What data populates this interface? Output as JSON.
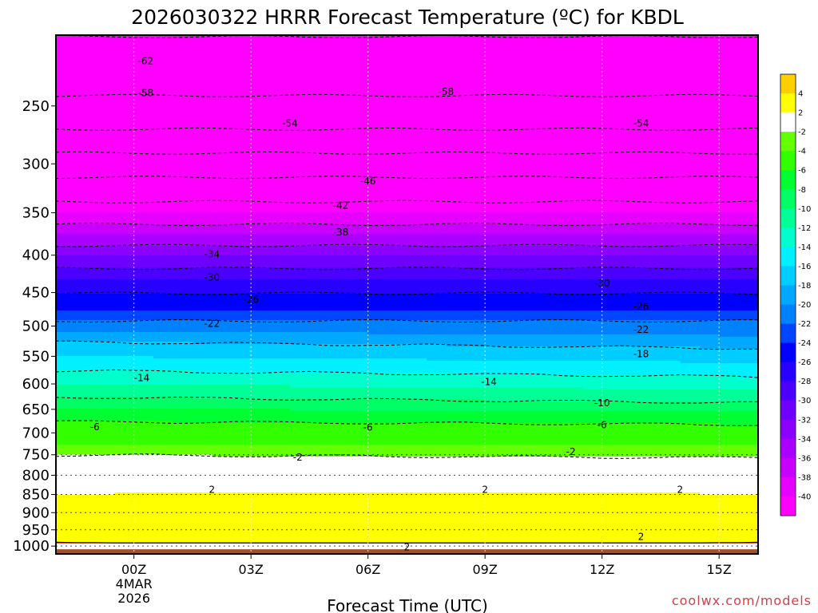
{
  "chart_data": {
    "type": "heatmap",
    "title": "2026030322 HRRR Forecast Temperature (ºC) for KBDL",
    "xlabel": "Forecast Time (UTC)",
    "ylabel": "",
    "x_tick_labels": [
      "00Z",
      "03Z",
      "06Z",
      "09Z",
      "12Z",
      "15Z"
    ],
    "x_date_label": [
      "4MAR",
      "2026"
    ],
    "y_tick_labels": [
      "250",
      "300",
      "350",
      "400",
      "450",
      "500",
      "550",
      "600",
      "650",
      "700",
      "750",
      "800",
      "850",
      "900",
      "950",
      "1000"
    ],
    "y_axis": "pressure (hPa), log scale, reversed",
    "ylim": [
      200,
      1025
    ],
    "xlim_hours": [
      -2,
      16
    ],
    "colorbar": {
      "tick_labels": [
        "4",
        "2",
        "-2",
        "-4",
        "-6",
        "-8",
        "-10",
        "-12",
        "-14",
        "-16",
        "-18",
        "-20",
        "-22",
        "-24",
        "-26",
        "-28",
        "-30",
        "-32",
        "-34",
        "-36",
        "-38",
        "-40"
      ],
      "colors": [
        "#ff00ff",
        "#e600ff",
        "#c800ff",
        "#aa00ff",
        "#8c00ff",
        "#6e00ff",
        "#4b00ff",
        "#2800ff",
        "#0000ff",
        "#0046ff",
        "#0082ff",
        "#00a8ff",
        "#00cdff",
        "#00f0ff",
        "#00ffcd",
        "#00ff96",
        "#00ff64",
        "#00ff32",
        "#32ff00",
        "#64ff00",
        "#ffffff",
        "#ffff00",
        "#ffd000"
      ]
    },
    "profile_pressure_hPa": [
      1000,
      975,
      950,
      925,
      900,
      875,
      850,
      825,
      800,
      775,
      750,
      725,
      700,
      675,
      650,
      625,
      600,
      575,
      550,
      525,
      500,
      475,
      450,
      425,
      400,
      375,
      350,
      325,
      300,
      275,
      250,
      225,
      200
    ],
    "profile_temperature_C_approx": [
      1,
      3,
      3,
      3,
      3,
      3,
      2,
      0,
      0,
      -1,
      -2,
      -4,
      -5,
      -6,
      -8,
      -10,
      -12,
      -14,
      -16,
      -18,
      -21,
      -24,
      -26,
      -29,
      -32,
      -36,
      -40,
      -44,
      -48,
      -53,
      -57,
      -60,
      -62
    ],
    "isotherm_labels": [
      {
        "value": "-62",
        "hour": 0.3,
        "p": 217
      },
      {
        "value": "-58",
        "hour": 0.3,
        "p": 240
      },
      {
        "value": "-58",
        "hour": 8,
        "p": 239
      },
      {
        "value": "-54",
        "hour": 4,
        "p": 264
      },
      {
        "value": "-54",
        "hour": 13,
        "p": 264
      },
      {
        "value": "-46",
        "hour": 6,
        "p": 317
      },
      {
        "value": "-42",
        "hour": 5.3,
        "p": 342
      },
      {
        "value": "-38",
        "hour": 5.3,
        "p": 372
      },
      {
        "value": "-34",
        "hour": 2,
        "p": 399
      },
      {
        "value": "-30",
        "hour": 2,
        "p": 429
      },
      {
        "value": "-30",
        "hour": 12,
        "p": 437
      },
      {
        "value": "-26",
        "hour": 3,
        "p": 460
      },
      {
        "value": "-26",
        "hour": 13,
        "p": 470
      },
      {
        "value": "-22",
        "hour": 2,
        "p": 496
      },
      {
        "value": "-22",
        "hour": 13,
        "p": 506
      },
      {
        "value": "-18",
        "hour": 13,
        "p": 546
      },
      {
        "value": "-14",
        "hour": 0.2,
        "p": 589
      },
      {
        "value": "-14",
        "hour": 9.1,
        "p": 596
      },
      {
        "value": "-10",
        "hour": 12,
        "p": 637
      },
      {
        "value": "-6",
        "hour": -1,
        "p": 687
      },
      {
        "value": "-6",
        "hour": 6,
        "p": 688
      },
      {
        "value": "-6",
        "hour": 12,
        "p": 683
      },
      {
        "value": "-2",
        "hour": 4.2,
        "p": 756
      },
      {
        "value": "-2",
        "hour": 11.2,
        "p": 743
      },
      {
        "value": "2",
        "hour": 2,
        "p": 837
      },
      {
        "value": "2",
        "hour": 9,
        "p": 837
      },
      {
        "value": "2",
        "hour": 14,
        "p": 837
      },
      {
        "value": "2",
        "hour": 13,
        "p": 971
      },
      {
        "value": "2",
        "hour": 7,
        "p": 1003
      }
    ]
  },
  "credit": "coolwx.com/models"
}
